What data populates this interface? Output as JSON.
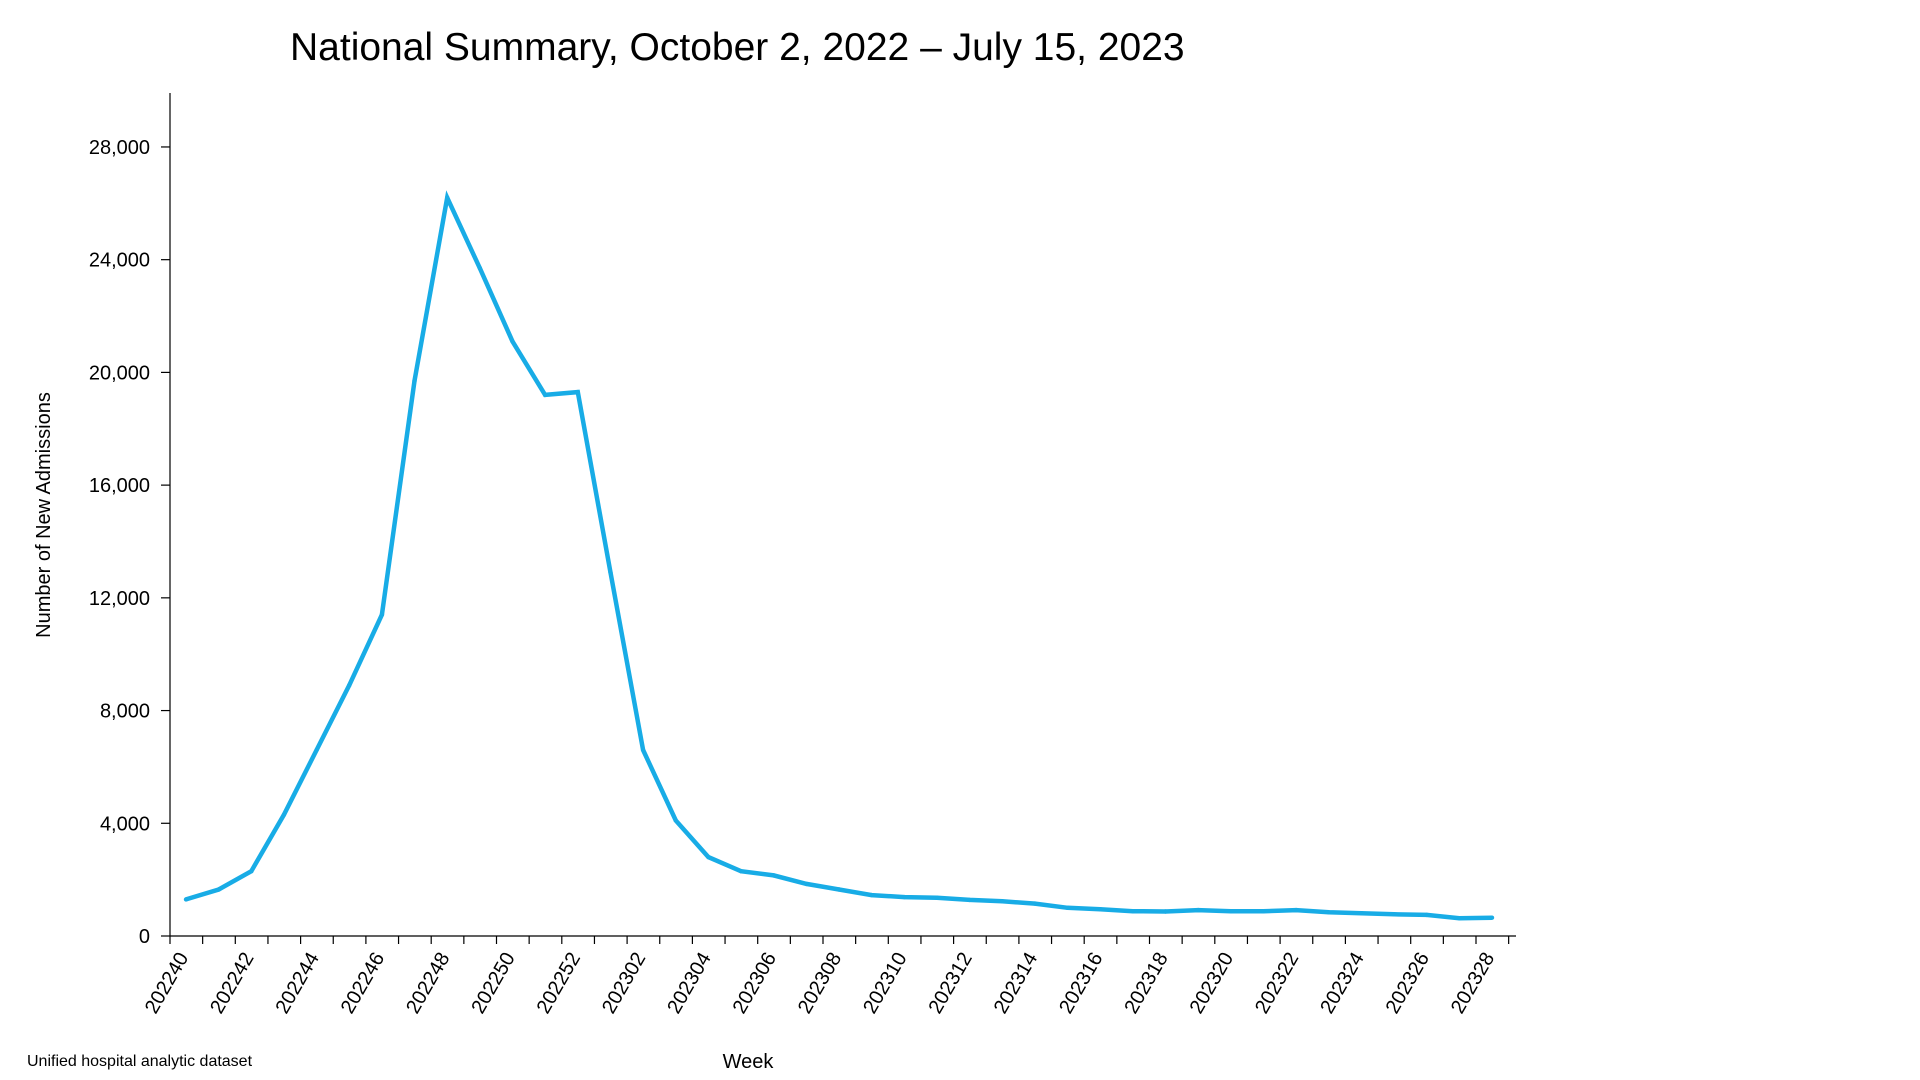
{
  "chart_data": {
    "type": "line",
    "title": "National Summary, October 2, 2022 – July 15, 2023",
    "xlabel": "Week",
    "ylabel": "Number of New Admissions",
    "source_note": "Unified hospital analytic dataset",
    "ylim": [
      0,
      30000
    ],
    "yticks": [
      0,
      4000,
      8000,
      12000,
      16000,
      20000,
      24000,
      28000
    ],
    "ytick_labels": [
      "0",
      "4,000",
      "8,000",
      "12,000",
      "16,000",
      "20,000",
      "24,000",
      "28,000"
    ],
    "x": [
      "202240",
      "202241",
      "202242",
      "202243",
      "202244",
      "202245",
      "202246",
      "202247",
      "202248",
      "202249",
      "202250",
      "202251",
      "202252",
      "202301",
      "202302",
      "202303",
      "202304",
      "202305",
      "202306",
      "202307",
      "202308",
      "202309",
      "202310",
      "202311",
      "202312",
      "202313",
      "202314",
      "202315",
      "202316",
      "202317",
      "202318",
      "202319",
      "202320",
      "202321",
      "202322",
      "202323",
      "202324",
      "202325",
      "202326",
      "202327",
      "202328"
    ],
    "xtick_labels": [
      "202240",
      "202242",
      "202244",
      "202246",
      "202248",
      "202250",
      "202252",
      "202302",
      "202304",
      "202306",
      "202308",
      "202310",
      "202312",
      "202314",
      "202316",
      "202318",
      "202320",
      "202322",
      "202324",
      "202326",
      "202328"
    ],
    "grid": false,
    "series": [
      {
        "color": "#18ace6",
        "values": [
          1300,
          1650,
          2300,
          4300,
          6600,
          8900,
          11400,
          19700,
          26200,
          23700,
          21100,
          19200,
          19300,
          12900,
          6600,
          4100,
          2800,
          2300,
          2150,
          1850,
          1650,
          1450,
          1380,
          1360,
          1280,
          1230,
          1150,
          1000,
          950,
          880,
          870,
          920,
          880,
          880,
          920,
          840,
          810,
          770,
          750,
          630,
          650
        ]
      }
    ]
  }
}
